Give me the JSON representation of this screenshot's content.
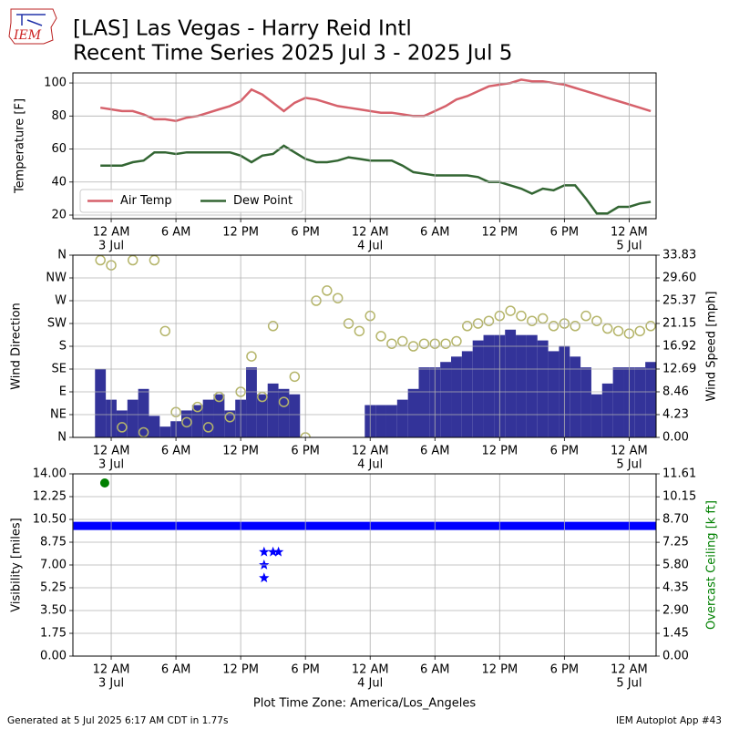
{
  "title": "[LAS] Las Vegas - Harry Reid Intl",
  "subtitle": "Recent Time Series 2025 Jul 3 - 2025 Jul 5",
  "logo": "IEM",
  "footer_left": "Generated at 5 Jul 2025 6:17 AM CDT in 1.77s",
  "footer_right": "IEM Autoplot App #43",
  "chart_data": [
    {
      "type": "line",
      "ylabel": "Temperature [F]",
      "ylim": [
        17.8,
        106.1
      ],
      "yticks": [
        20,
        40,
        60,
        80,
        100
      ],
      "grid": true,
      "legend": "lower left",
      "xlim": [
        "2025-07-02 20:27",
        "2025-07-05 02:30"
      ],
      "xticks": [
        {
          "value": "2025-07-03 00:00",
          "label": "12 AM",
          "date": "3 Jul"
        },
        {
          "value": "2025-07-03 06:00",
          "label": "6 AM"
        },
        {
          "value": "2025-07-03 12:00",
          "label": "12 PM"
        },
        {
          "value": "2025-07-03 18:00",
          "label": "6 PM"
        },
        {
          "value": "2025-07-04 00:00",
          "label": "12 AM",
          "date": "4 Jul"
        },
        {
          "value": "2025-07-04 06:00",
          "label": "6 AM"
        },
        {
          "value": "2025-07-04 12:00",
          "label": "12 PM"
        },
        {
          "value": "2025-07-04 18:00",
          "label": "6 PM"
        },
        {
          "value": "2025-07-05 00:00",
          "label": "12 AM",
          "date": "5 Jul"
        }
      ],
      "x": [
        "2025-07-02 23:00",
        "2025-07-03 00:00",
        "2025-07-03 01:00",
        "2025-07-03 02:00",
        "2025-07-03 03:00",
        "2025-07-03 04:00",
        "2025-07-03 05:00",
        "2025-07-03 06:00",
        "2025-07-03 07:00",
        "2025-07-03 08:00",
        "2025-07-03 09:00",
        "2025-07-03 10:00",
        "2025-07-03 11:00",
        "2025-07-03 12:00",
        "2025-07-03 13:00",
        "2025-07-03 14:00",
        "2025-07-03 15:00",
        "2025-07-03 16:00",
        "2025-07-03 17:00",
        "2025-07-03 18:00",
        "2025-07-03 19:00",
        "2025-07-03 20:00",
        "2025-07-03 21:00",
        "2025-07-03 22:00",
        "2025-07-03 23:00",
        "2025-07-04 00:00",
        "2025-07-04 01:00",
        "2025-07-04 02:00",
        "2025-07-04 03:00",
        "2025-07-04 04:00",
        "2025-07-04 05:00",
        "2025-07-04 06:00",
        "2025-07-04 07:00",
        "2025-07-04 08:00",
        "2025-07-04 09:00",
        "2025-07-04 10:00",
        "2025-07-04 11:00",
        "2025-07-04 12:00",
        "2025-07-04 13:00",
        "2025-07-04 14:00",
        "2025-07-04 15:00",
        "2025-07-04 16:00",
        "2025-07-04 17:00",
        "2025-07-04 18:00",
        "2025-07-04 19:00",
        "2025-07-04 20:00",
        "2025-07-04 21:00",
        "2025-07-04 22:00",
        "2025-07-04 23:00",
        "2025-07-05 00:00",
        "2025-07-05 01:00",
        "2025-07-05 02:00"
      ],
      "series": [
        {
          "name": "Air Temp",
          "type": "line",
          "color": "#d6616b",
          "values": [
            85,
            84,
            83,
            83,
            81,
            78,
            78,
            77,
            79,
            80,
            82,
            84,
            86,
            89,
            96,
            93,
            88,
            83,
            88,
            91,
            90,
            88,
            86,
            85,
            84,
            83,
            82,
            82,
            81,
            80,
            80,
            83,
            86,
            90,
            92,
            95,
            98,
            99,
            100,
            102,
            101,
            101,
            100,
            99,
            97,
            95,
            93,
            91,
            89,
            87,
            85,
            83
          ]
        },
        {
          "name": "Dew Point",
          "type": "line",
          "color": "#336633",
          "values": [
            50,
            50,
            50,
            52,
            53,
            58,
            58,
            57,
            58,
            58,
            58,
            58,
            58,
            56,
            52,
            56,
            57,
            62,
            58,
            54,
            52,
            52,
            53,
            55,
            54,
            53,
            53,
            53,
            50,
            46,
            45,
            44,
            44,
            44,
            44,
            43,
            40,
            40,
            38,
            36,
            33,
            36,
            35,
            38,
            38,
            30,
            21,
            21,
            25,
            25,
            27,
            28
          ]
        }
      ]
    },
    {
      "type": "combo",
      "ylabel": "Wind Direction",
      "y2label": "Wind Speed [mph]",
      "grid": true,
      "ylim": [
        0,
        360
      ],
      "yticks": [
        {
          "value": 0,
          "label": "N"
        },
        {
          "value": 45,
          "label": "NE"
        },
        {
          "value": 90,
          "label": "E"
        },
        {
          "value": 135,
          "label": "SE"
        },
        {
          "value": 180,
          "label": "S"
        },
        {
          "value": 225,
          "label": "SW"
        },
        {
          "value": 270,
          "label": "W"
        },
        {
          "value": 315,
          "label": "NW"
        },
        {
          "value": 360,
          "label": "N"
        }
      ],
      "y2lim": [
        0,
        33.83
      ],
      "y2ticks": [
        {
          "value": 0,
          "label": "0.00"
        },
        {
          "value": 4.23,
          "label": "4.23"
        },
        {
          "value": 8.46,
          "label": "8.46"
        },
        {
          "value": 12.69,
          "label": "12.69"
        },
        {
          "value": 16.92,
          "label": "16.92"
        },
        {
          "value": 21.15,
          "label": "21.15"
        },
        {
          "value": 25.37,
          "label": "25.37"
        },
        {
          "value": 29.6,
          "label": "29.60"
        },
        {
          "value": 33.83,
          "label": "33.83"
        }
      ],
      "xlim": [
        "2025-07-02 20:27",
        "2025-07-05 02:30"
      ],
      "xticks": [
        {
          "value": "2025-07-03 00:00",
          "label": "12 AM",
          "date": "3 Jul"
        },
        {
          "value": "2025-07-03 06:00",
          "label": "6 AM"
        },
        {
          "value": "2025-07-03 12:00",
          "label": "12 PM"
        },
        {
          "value": "2025-07-03 18:00",
          "label": "6 PM"
        },
        {
          "value": "2025-07-04 00:00",
          "label": "12 AM",
          "date": "4 Jul"
        },
        {
          "value": "2025-07-04 06:00",
          "label": "6 AM"
        },
        {
          "value": "2025-07-04 12:00",
          "label": "12 PM"
        },
        {
          "value": "2025-07-04 18:00",
          "label": "6 PM"
        },
        {
          "value": "2025-07-05 00:00",
          "label": "12 AM",
          "date": "5 Jul"
        }
      ],
      "x": [
        "2025-07-02 23:00",
        "2025-07-03 00:00",
        "2025-07-03 01:00",
        "2025-07-03 02:00",
        "2025-07-03 03:00",
        "2025-07-03 04:00",
        "2025-07-03 05:00",
        "2025-07-03 06:00",
        "2025-07-03 07:00",
        "2025-07-03 08:00",
        "2025-07-03 09:00",
        "2025-07-03 10:00",
        "2025-07-03 11:00",
        "2025-07-03 12:00",
        "2025-07-03 13:00",
        "2025-07-03 14:00",
        "2025-07-03 15:00",
        "2025-07-03 16:00",
        "2025-07-03 17:00",
        "2025-07-03 18:00",
        "2025-07-03 19:00",
        "2025-07-03 20:00",
        "2025-07-03 21:00",
        "2025-07-03 22:00",
        "2025-07-03 23:00",
        "2025-07-04 00:00",
        "2025-07-04 01:00",
        "2025-07-04 02:00",
        "2025-07-04 03:00",
        "2025-07-04 04:00",
        "2025-07-04 05:00",
        "2025-07-04 06:00",
        "2025-07-04 07:00",
        "2025-07-04 08:00",
        "2025-07-04 09:00",
        "2025-07-04 10:00",
        "2025-07-04 11:00",
        "2025-07-04 12:00",
        "2025-07-04 13:00",
        "2025-07-04 14:00",
        "2025-07-04 15:00",
        "2025-07-04 16:00",
        "2025-07-04 17:00",
        "2025-07-04 18:00",
        "2025-07-04 19:00",
        "2025-07-04 20:00",
        "2025-07-04 21:00",
        "2025-07-04 22:00",
        "2025-07-04 23:00",
        "2025-07-05 00:00",
        "2025-07-05 01:00",
        "2025-07-05 02:00"
      ],
      "series": [
        {
          "type": "bar",
          "axis": "y2",
          "color": "#333399",
          "values": [
            12.7,
            7,
            5,
            7,
            9,
            4,
            2,
            3,
            5,
            6,
            7,
            8,
            5,
            7,
            13,
            8,
            10,
            9,
            8,
            0,
            0,
            0,
            0,
            0,
            0,
            6,
            6,
            6,
            7,
            9,
            13,
            13,
            14,
            15,
            16,
            18,
            19,
            19,
            20,
            19,
            19,
            18,
            16,
            17,
            15,
            13,
            8,
            10,
            13,
            13,
            13,
            14
          ]
        },
        {
          "type": "scatter",
          "marker": "circle-open",
          "color": "#b5b56a",
          "values": [
            350,
            340,
            20,
            350,
            10,
            350,
            210,
            50,
            30,
            60,
            20,
            80,
            40,
            90,
            160,
            80,
            220,
            70,
            120,
            0,
            270,
            290,
            275,
            225,
            210,
            240,
            200,
            185,
            190,
            180,
            185,
            185,
            185,
            190,
            220,
            225,
            230,
            240,
            250,
            240,
            230,
            235,
            220,
            225,
            220,
            240,
            230,
            215,
            210,
            205,
            210,
            220
          ]
        }
      ]
    },
    {
      "type": "scatter",
      "ylabel": "Visibility [miles]",
      "y2label": "Overcast Ceiling [k ft]",
      "y2color": "#008000",
      "grid": true,
      "xlabel": "Plot Time Zone: America/Los_Angeles",
      "ylim": [
        0,
        14
      ],
      "yticks": [
        {
          "value": 0,
          "label": "0.00"
        },
        {
          "value": 1.75,
          "label": "1.75"
        },
        {
          "value": 3.5,
          "label": "3.50"
        },
        {
          "value": 5.25,
          "label": "5.25"
        },
        {
          "value": 7,
          "label": "7.00"
        },
        {
          "value": 8.75,
          "label": "8.75"
        },
        {
          "value": 10.5,
          "label": "10.50"
        },
        {
          "value": 12.25,
          "label": "12.25"
        },
        {
          "value": 14,
          "label": "14.00"
        }
      ],
      "y2lim": [
        0,
        11.61
      ],
      "y2ticks": [
        {
          "value": 0,
          "label": "0.00"
        },
        {
          "value": 1.45,
          "label": "1.45"
        },
        {
          "value": 2.9,
          "label": "2.90"
        },
        {
          "value": 4.35,
          "label": "4.35"
        },
        {
          "value": 5.8,
          "label": "5.80"
        },
        {
          "value": 7.25,
          "label": "7.25"
        },
        {
          "value": 8.7,
          "label": "8.70"
        },
        {
          "value": 10.15,
          "label": "10.15"
        },
        {
          "value": 11.61,
          "label": "11.61"
        }
      ],
      "xlim": [
        "2025-07-02 20:27",
        "2025-07-05 02:30"
      ],
      "xticks": [
        {
          "value": "2025-07-03 00:00",
          "label": "12 AM",
          "date": "3 Jul"
        },
        {
          "value": "2025-07-03 06:00",
          "label": "6 AM"
        },
        {
          "value": "2025-07-03 12:00",
          "label": "12 PM"
        },
        {
          "value": "2025-07-03 18:00",
          "label": "6 PM"
        },
        {
          "value": "2025-07-04 00:00",
          "label": "12 AM",
          "date": "4 Jul"
        },
        {
          "value": "2025-07-04 06:00",
          "label": "6 AM"
        },
        {
          "value": "2025-07-04 12:00",
          "label": "12 PM"
        },
        {
          "value": "2025-07-04 18:00",
          "label": "6 PM"
        },
        {
          "value": "2025-07-05 00:00",
          "label": "12 AM",
          "date": "5 Jul"
        }
      ],
      "series": [
        {
          "type": "line",
          "width": 9,
          "color": "#0000ff",
          "x": [
            "2025-07-02 20:30",
            "2025-07-05 02:30"
          ],
          "values": [
            10,
            10
          ]
        },
        {
          "type": "scatter",
          "marker": "star",
          "color": "#0000ff",
          "x": [
            "2025-07-03 14:10",
            "2025-07-03 14:10",
            "2025-07-03 14:10",
            "2025-07-03 15:00",
            "2025-07-03 15:30"
          ],
          "values": [
            8,
            7,
            6,
            8,
            8
          ]
        },
        {
          "type": "scatter",
          "marker": "circle",
          "axis": "y2",
          "color": "#008000",
          "x": [
            "2025-07-02 23:24"
          ],
          "values": [
            11.03
          ]
        }
      ]
    }
  ]
}
